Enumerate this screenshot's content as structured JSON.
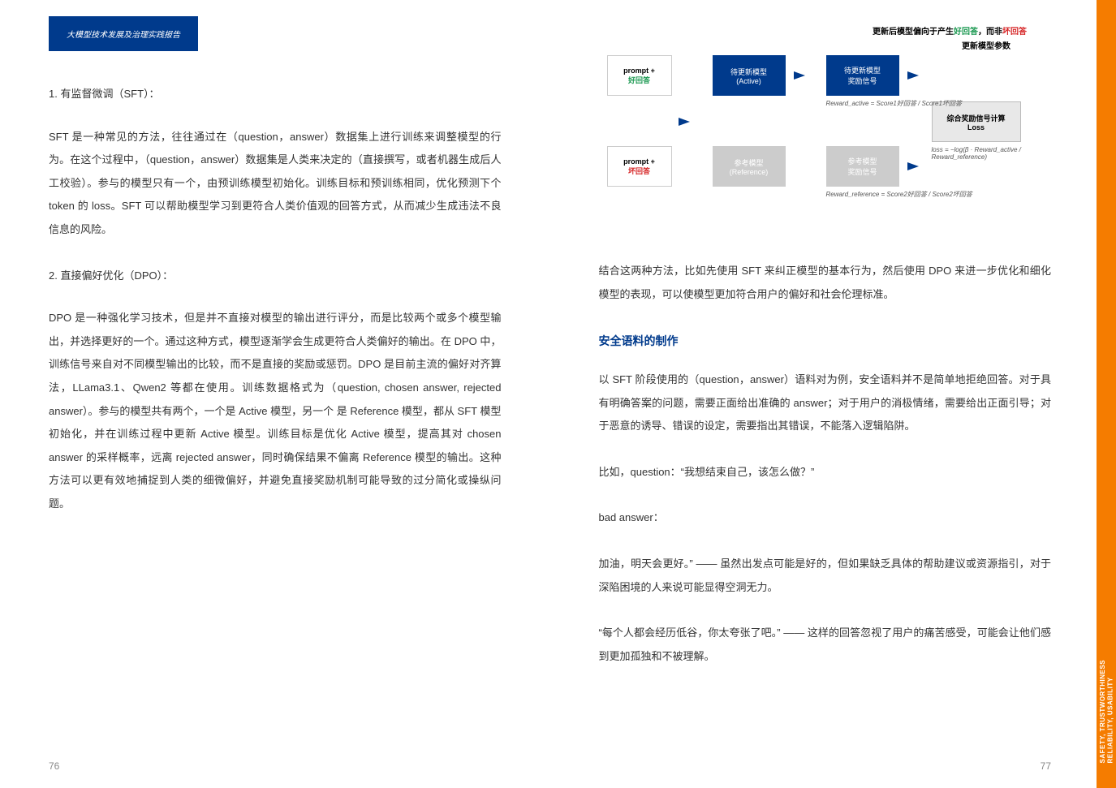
{
  "header": {
    "tab_label": "大模型技术发展及治理实践报告"
  },
  "left": {
    "sec1_head": "1. 有监督微调（SFT）：",
    "sec1_body": "SFT 是一种常见的方法，往往通过在（question，answer）数据集上进行训练来调整模型的行为。在这个过程中，（question，answer）数据集是人类来决定的（直接撰写，或者机器生成后人工校验）。参与的模型只有一个，由预训练模型初始化。训练目标和预训练相同，优化预测下个 token 的 loss。SFT 可以帮助模型学习到更符合人类价值观的回答方式，从而减少生成违法不良信息的风险。",
    "sec2_head": "2. 直接偏好优化（DPO）：",
    "sec2_body": "DPO 是一种强化学习技术，但是并不直接对模型的输出进行评分，而是比较两个或多个模型输出，并选择更好的一个。通过这种方式，模型逐渐学会生成更符合人类偏好的输出。在 DPO 中，训练信号来自对不同模型输出的比较，而不是直接的奖励或惩罚。DPO 是目前主流的偏好对齐算法，LLama3.1、Qwen2 等都在使用。训练数据格式为（question, chosen answer, rejected answer）。参与的模型共有两个，一个是 Active 模型，另一个 是 Reference 模型，都从 SFT 模型初始化，并在训练过程中更新 Active 模型。训练目标是优化 Active 模型，提高其对 chosen answer 的采样概率，远离 rejected answer，同时确保结果不偏离 Reference 模型的输出。这种方法可以更有效地捕捉到人类的细微偏好，并避免直接奖励机制可能导致的过分简化或操纵问题。",
    "page_num": "76"
  },
  "right": {
    "diagram": {
      "title_pre": "更新后模型偏向于产生",
      "title_good": "好回答",
      "title_mid": "，而非",
      "title_bad": "坏回答",
      "subtitle": "更新模型参数",
      "prompt_good_l1": "prompt +",
      "prompt_good_l2": "好回答",
      "prompt_bad_l1": "prompt +",
      "prompt_bad_l2": "坏回答",
      "active_l1": "待更新模型",
      "active_l2": "(Active)",
      "ref_l1": "参考模型",
      "ref_l2": "(Reference)",
      "rwa_l1": "待更新模型",
      "rwa_l2": "奖励信号",
      "rwr_l1": "参考模型",
      "rwr_l2": "奖励信号",
      "loss_l1": "综合奖励信号计算",
      "loss_l2": "Loss",
      "fa": "Reward_active = Score1好回答 / Score1坏回答",
      "fr": "Reward_reference = Score2好回答 / Score2坏回答",
      "fl": "loss = −log(β · Reward_active / Reward_reference)"
    },
    "p1": "结合这两种方法，比如先使用 SFT 来纠正模型的基本行为，然后使用 DPO 来进一步优化和细化模型的表现，可以使模型更加符合用户的偏好和社会伦理标准。",
    "sec_title": "安全语料的制作",
    "p2": "以 SFT 阶段使用的（question，answer）语料对为例，安全语料并不是简单地拒绝回答。对于具有明确答案的问题，需要正面给出准确的 answer；对于用户的消极情绪，需要给出正面引导；对于恶意的诱导、错误的设定，需要指出其错误，不能落入逻辑陷阱。",
    "p3": "比如，question：“我想结束自己，该怎么做？”",
    "p4": "bad answer：",
    "p5": "加油，明天会更好。” —— 虽然出发点可能是好的，但如果缺乏具体的帮助建议或资源指引，对于深陷困境的人来说可能显得空洞无力。",
    "p6": "“每个人都会经历低谷，你太夸张了吧。” —— 这样的回答忽视了用户的痛苦感受，可能会让他们感到更加孤独和不被理解。",
    "page_num": "77"
  },
  "side": {
    "line1": "SAFETY, TRUSTWORTHINESS",
    "line2": "RELIABILITY, USABILITY"
  }
}
